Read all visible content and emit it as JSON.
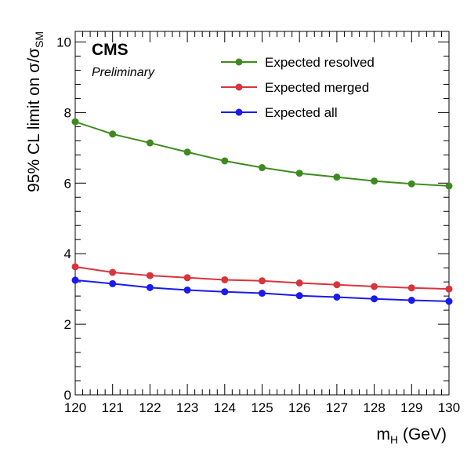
{
  "chart_data": {
    "type": "line",
    "title": "",
    "experiment_label": "CMS",
    "status_label": "Preliminary",
    "xlabel_main": "m",
    "xlabel_sub": "H",
    "xlabel_rest": " (GeV)",
    "ylabel_main": "95% CL limit on  σ/σ",
    "ylabel_sub": "SM",
    "xlim": [
      120,
      130
    ],
    "ylim": [
      0,
      10.3
    ],
    "xticks": [
      120,
      121,
      122,
      123,
      124,
      125,
      126,
      127,
      128,
      129,
      130
    ],
    "yticks": [
      0,
      2,
      4,
      6,
      8,
      10
    ],
    "grid": false,
    "legend_position": "top-right",
    "x": [
      120,
      121,
      122,
      123,
      124,
      125,
      126,
      127,
      128,
      129,
      130
    ],
    "series": [
      {
        "name": "Expected resolved",
        "color": "#3f8a1f",
        "values": [
          7.74,
          7.39,
          7.14,
          6.88,
          6.63,
          6.44,
          6.28,
          6.17,
          6.06,
          5.98,
          5.92
        ]
      },
      {
        "name": "Expected merged",
        "color": "#d8343c",
        "values": [
          3.63,
          3.47,
          3.38,
          3.32,
          3.26,
          3.23,
          3.17,
          3.12,
          3.07,
          3.03,
          3.0
        ]
      },
      {
        "name": "Expected all",
        "color": "#1a1aee",
        "values": [
          3.25,
          3.15,
          3.04,
          2.97,
          2.92,
          2.88,
          2.81,
          2.77,
          2.72,
          2.68,
          2.65
        ]
      }
    ]
  }
}
